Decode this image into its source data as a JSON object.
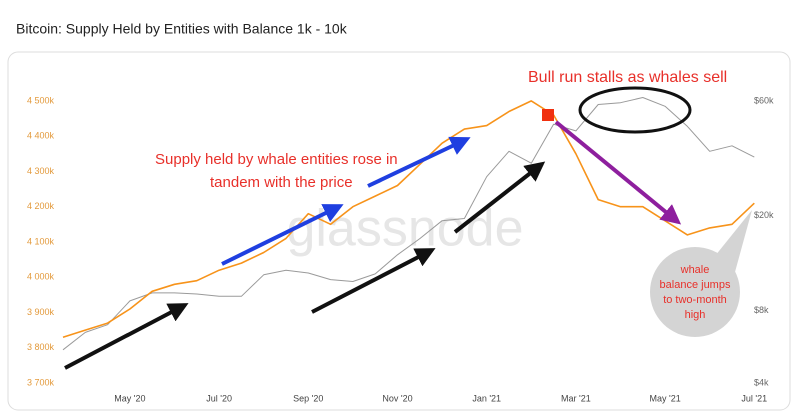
{
  "chart_data": {
    "type": "line",
    "title": "Bitcoin: Supply Held by Entities with Balance 1k - 10k",
    "watermark": "glassnode",
    "categories": [
      null,
      null,
      null,
      "May '20",
      null,
      null,
      null,
      "Jul '20",
      null,
      null,
      null,
      "Sep '20",
      null,
      null,
      null,
      "Nov '20",
      null,
      null,
      null,
      "Jan '21",
      null,
      null,
      null,
      "Mar '21",
      null,
      null,
      null,
      "May '21",
      null,
      null,
      null,
      "Jul '21"
    ],
    "series": [
      {
        "name": "Supply held by entities with balance 1k - 10k",
        "color": "#f7931a",
        "axis": "y",
        "values": [
          3830,
          3850,
          3870,
          3910,
          3960,
          3980,
          3990,
          4020,
          4040,
          4070,
          4110,
          4180,
          4150,
          4200,
          4230,
          4260,
          4320,
          4380,
          4420,
          4430,
          4470,
          4500,
          4460,
          4350,
          4220,
          4200,
          4200,
          4160,
          4120,
          4140,
          4150,
          4210
        ]
      },
      {
        "name": "Price",
        "color": "#9a9a9a",
        "axis": "y2",
        "values": [
          5500,
          6500,
          7000,
          8800,
          9500,
          9500,
          9400,
          9200,
          9200,
          11300,
          11800,
          11500,
          10800,
          10600,
          11400,
          13700,
          16000,
          19000,
          19400,
          29000,
          37000,
          33000,
          48000,
          45000,
          58000,
          59000,
          62000,
          57000,
          47000,
          37000,
          39000,
          35000
        ]
      }
    ],
    "ylim": [
      3666,
      4616
    ],
    "yticks": [
      {
        "value": 3700,
        "label": "3 700k"
      },
      {
        "value": 3800,
        "label": "3 800k"
      },
      {
        "value": 3900,
        "label": "3 900k"
      },
      {
        "value": 4000,
        "label": "4 000k"
      },
      {
        "value": 4100,
        "label": "4 100k"
      },
      {
        "value": 4200,
        "label": "4 200k"
      },
      {
        "value": 4300,
        "label": "4 300k"
      },
      {
        "value": 4400,
        "label": "4 400k"
      },
      {
        "value": 4500,
        "label": "4 500k"
      }
    ],
    "y2lim": [
      3565,
      88900
    ],
    "y2scale": "log",
    "y2ticks": [
      {
        "value": 4000,
        "label": "$4k"
      },
      {
        "value": 8000,
        "label": "$8k"
      },
      {
        "value": 20000,
        "label": "$20k"
      },
      {
        "value": 60000,
        "label": "$60k"
      }
    ],
    "annotations": [
      {
        "lines": [
          "Bull run stalls as whales sell"
        ],
        "color": "#e8302a"
      },
      {
        "lines": [
          "Supply held by whale entities rose in",
          "tandem with the price"
        ],
        "color": "#e8302a"
      },
      {
        "lines": [
          "whale",
          "balance jumps",
          "to two-month",
          "high"
        ],
        "color": "#e8302a"
      }
    ]
  }
}
